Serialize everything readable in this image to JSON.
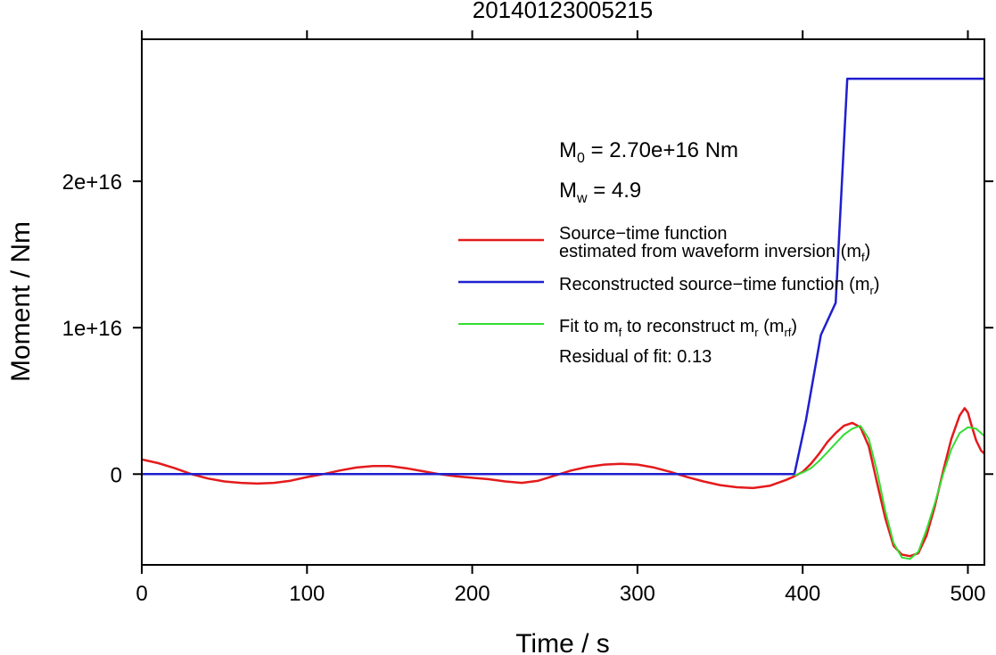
{
  "chart_data": {
    "type": "line",
    "title": "20140123005215",
    "xlabel": "Time / s",
    "ylabel": "Moment / Nm",
    "xlim": [
      0,
      510
    ],
    "ylim": [
      -6200000000000000.0,
      2.97e+16
    ],
    "x_ticks": [
      0,
      100,
      200,
      300,
      400,
      500
    ],
    "x_tick_labels": [
      "0",
      "100",
      "200",
      "300",
      "400",
      "500"
    ],
    "y_ticks": [
      0,
      1e+16,
      2e+16
    ],
    "y_tick_labels": [
      "0",
      "1e+16",
      "2e+16"
    ],
    "grid": false,
    "annotations": {
      "m0_main": "M",
      "m0_sub": "0",
      "m0_rest": " = 2.70e+16 Nm",
      "mw_main": "M",
      "mw_sub": "w",
      "mw_rest": " = 4.9",
      "residual": "Residual of fit: 0.13"
    },
    "legend": {
      "position": "right",
      "entries": [
        {
          "line1": "Source−time function",
          "line2a": "estimated from waveform inversion (m",
          "line2sub": "f",
          "line2b": ")",
          "color": "#e41a1c"
        },
        {
          "text_a": "Reconstructed source−time function (m",
          "text_sub": "r",
          "text_b": ")",
          "color": "#1f1fcf"
        },
        {
          "text_a": "Fit to m",
          "sub1": "f",
          "text_b": " to reconstruct m",
          "sub2": "r",
          "text_c": " (m",
          "sub3": "rf",
          "text_d": ")",
          "color": "#33dd33"
        }
      ]
    },
    "series": [
      {
        "color": "#e41a1c",
        "x": [
          0,
          10,
          20,
          30,
          40,
          50,
          60,
          70,
          80,
          90,
          100,
          110,
          120,
          130,
          140,
          150,
          160,
          170,
          180,
          190,
          200,
          210,
          220,
          230,
          240,
          250,
          260,
          270,
          280,
          290,
          300,
          310,
          320,
          330,
          340,
          350,
          360,
          370,
          380,
          390,
          395,
          400,
          405,
          410,
          415,
          420,
          425,
          430,
          435,
          440,
          445,
          450,
          455,
          460,
          465,
          470,
          475,
          480,
          485,
          490,
          495,
          498,
          500,
          502,
          505,
          508,
          510
        ],
        "values": [
          1000000000000000.0,
          750000000000000.0,
          400000000000000.0,
          0,
          -300000000000000.0,
          -500000000000000.0,
          -600000000000000.0,
          -650000000000000.0,
          -600000000000000.0,
          -450000000000000.0,
          -200000000000000.0,
          0,
          250000000000000.0,
          450000000000000.0,
          550000000000000.0,
          550000000000000.0,
          400000000000000.0,
          200000000000000.0,
          0,
          -150000000000000.0,
          -250000000000000.0,
          -350000000000000.0,
          -500000000000000.0,
          -600000000000000.0,
          -450000000000000.0,
          -100000000000000.0,
          250000000000000.0,
          500000000000000.0,
          650000000000000.0,
          700000000000000.0,
          650000000000000.0,
          450000000000000.0,
          150000000000000.0,
          -200000000000000.0,
          -500000000000000.0,
          -750000000000000.0,
          -900000000000000.0,
          -950000000000000.0,
          -800000000000000.0,
          -400000000000000.0,
          -150000000000000.0,
          150000000000000.0,
          700000000000000.0,
          1400000000000000.0,
          2200000000000000.0,
          2800000000000000.0,
          3300000000000000.0,
          3500000000000000.0,
          3200000000000000.0,
          1900000000000000.0,
          -600000000000000.0,
          -3000000000000000.0,
          -4900000000000000.0,
          -5500000000000000.0,
          -5600000000000000.0,
          -5400000000000000.0,
          -4200000000000000.0,
          -2200000000000000.0,
          200000000000000.0,
          2400000000000000.0,
          4000000000000000.0,
          4500000000000000.0,
          4200000000000000.0,
          3400000000000000.0,
          2300000000000000.0,
          1600000000000000.0,
          1400000000000000.0
        ]
      },
      {
        "color": "#1f1fcf",
        "x": [
          0,
          395,
          402,
          411,
          420,
          427,
          510
        ],
        "values": [
          0,
          0,
          3700000000000000.0,
          9500000000000000.0,
          1.17e+16,
          2.7e+16,
          2.7e+16
        ]
      },
      {
        "color": "#33dd33",
        "x": [
          395,
          400,
          405,
          410,
          415,
          420,
          425,
          430,
          435,
          440,
          445,
          450,
          455,
          460,
          465,
          470,
          475,
          480,
          485,
          490,
          495,
          500,
          505,
          510
        ],
        "values": [
          -100000000000000.0,
          100000000000000.0,
          400000000000000.0,
          900000000000000.0,
          1500000000000000.0,
          2100000000000000.0,
          2700000000000000.0,
          3100000000000000.0,
          3300000000000000.0,
          2400000000000000.0,
          200000000000000.0,
          -2500000000000000.0,
          -4700000000000000.0,
          -5700000000000000.0,
          -5800000000000000.0,
          -5300000000000000.0,
          -3800000000000000.0,
          -2000000000000000.0,
          0,
          1700000000000000.0,
          2800000000000000.0,
          3200000000000000.0,
          3100000000000000.0,
          2600000000000000.0
        ]
      }
    ]
  }
}
